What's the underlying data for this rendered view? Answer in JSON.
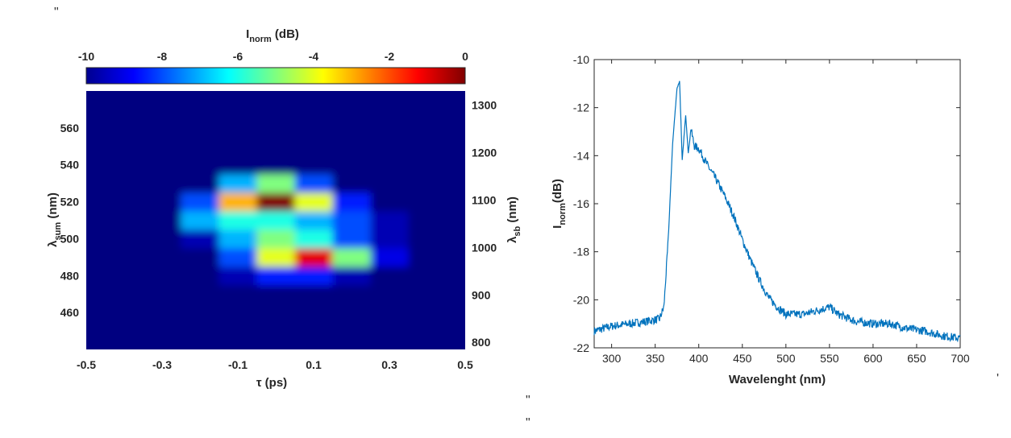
{
  "stray_marks": {
    "top_left": "\"",
    "mid_1": "\"",
    "mid_2": "\"",
    "right_edge": "'"
  },
  "colormap": {
    "label_main": "I",
    "label_sub": "norm",
    "label_tail": " (dB)",
    "ticks": [
      -10,
      -8,
      -6,
      -4,
      -2,
      0
    ],
    "range": [
      -10,
      0
    ]
  },
  "chart_data": [
    {
      "type": "heatmap",
      "x": [
        -0.5,
        -0.4,
        -0.3,
        -0.2,
        -0.1,
        0.0,
        0.1,
        0.2,
        0.3,
        0.4,
        0.5
      ],
      "y": [
        440,
        450,
        460,
        470,
        480,
        490,
        500,
        510,
        520,
        530,
        540,
        550,
        560,
        570,
        580
      ],
      "xlim": [
        -0.5,
        0.5
      ],
      "ylim": [
        440,
        580
      ],
      "y2lim": [
        785,
        1330
      ],
      "z": [
        [
          -10,
          -10,
          -10,
          -10,
          -10,
          -10,
          -10,
          -10,
          -10,
          -10,
          -10
        ],
        [
          -10,
          -10,
          -10,
          -10,
          -10,
          -10,
          -10,
          -10,
          -10,
          -10,
          -10
        ],
        [
          -10,
          -10,
          -10,
          -10,
          -10,
          -10,
          -10,
          -10,
          -10,
          -10,
          -10
        ],
        [
          -10,
          -10,
          -10,
          -10,
          -10,
          -10,
          -10,
          -10,
          -10,
          -10,
          -10
        ],
        [
          -10,
          -10,
          -10,
          -10,
          -9.5,
          -8.5,
          -8.5,
          -9.5,
          -10,
          -10,
          -10
        ],
        [
          -10,
          -10,
          -10,
          -10,
          -8,
          -4,
          -1,
          -5,
          -9,
          -10,
          -10
        ],
        [
          -10,
          -10,
          -10,
          -9.5,
          -7,
          -5,
          -6,
          -8,
          -9.5,
          -10,
          -10
        ],
        [
          -10,
          -10,
          -10,
          -7,
          -6,
          -6,
          -7,
          -8,
          -9.5,
          -10,
          -10
        ],
        [
          -10,
          -10,
          -10,
          -8,
          -3,
          0,
          -4,
          -8.5,
          -10,
          -10,
          -10
        ],
        [
          -10,
          -10,
          -10,
          -10,
          -7,
          -5,
          -8,
          -10,
          -10,
          -10,
          -10
        ],
        [
          -10,
          -10,
          -10,
          -10,
          -10,
          -10,
          -10,
          -10,
          -10,
          -10,
          -10
        ],
        [
          -10,
          -10,
          -10,
          -10,
          -10,
          -10,
          -10,
          -10,
          -10,
          -10,
          -10
        ],
        [
          -10,
          -10,
          -10,
          -10,
          -10,
          -10,
          -10,
          -10,
          -10,
          -10,
          -10
        ],
        [
          -10,
          -10,
          -10,
          -10,
          -10,
          -10,
          -10,
          -10,
          -10,
          -10,
          -10
        ],
        [
          -10,
          -10,
          -10,
          -10,
          -10,
          -10,
          -10,
          -10,
          -10,
          -10,
          -10
        ]
      ],
      "xticks": [
        "-0.5",
        "-0.3",
        "-0.1",
        "0.1",
        "0.3",
        "0.5"
      ],
      "yticks": [
        460,
        480,
        500,
        520,
        540,
        560
      ],
      "y2ticks": [
        800,
        900,
        1000,
        1100,
        1200,
        1300
      ],
      "xlabel": "τ (ps)",
      "ylabel_main": "λ",
      "ylabel_sub": "sum",
      "ylabel_tail": " (nm)",
      "y2label_main": "λ",
      "y2label_sub": "sb",
      "y2label_tail": " (nm)"
    },
    {
      "type": "line",
      "x": [
        280,
        300,
        320,
        340,
        355,
        360,
        365,
        370,
        375,
        378,
        381,
        385,
        388,
        391,
        395,
        400,
        410,
        420,
        430,
        440,
        450,
        460,
        470,
        480,
        490,
        500,
        520,
        540,
        550,
        560,
        580,
        600,
        620,
        640,
        660,
        680,
        700
      ],
      "series": [
        {
          "values": [
            -21.3,
            -21.1,
            -21.0,
            -20.9,
            -20.8,
            -20.3,
            -17.5,
            -13.5,
            -11.2,
            -10.9,
            -14.2,
            -12.3,
            -13.9,
            -12.9,
            -13.6,
            -13.7,
            -14.4,
            -15.0,
            -15.7,
            -16.5,
            -17.5,
            -18.4,
            -19.2,
            -19.9,
            -20.3,
            -20.6,
            -20.6,
            -20.4,
            -20.3,
            -20.6,
            -20.9,
            -21.0,
            -21.0,
            -21.2,
            -21.3,
            -21.5,
            -21.6
          ]
        }
      ],
      "xlim": [
        280,
        700
      ],
      "ylim": [
        -22,
        -10
      ],
      "xticks": [
        300,
        350,
        400,
        450,
        500,
        550,
        600,
        650,
        700
      ],
      "yticks": [
        -10,
        -12,
        -14,
        -16,
        -18,
        -20,
        -22
      ],
      "xlabel": "Wavelenght (nm)",
      "ylabel_main": "I",
      "ylabel_sub": "norm",
      "ylabel_tail": "(dB)",
      "color": "#0072BD"
    }
  ]
}
